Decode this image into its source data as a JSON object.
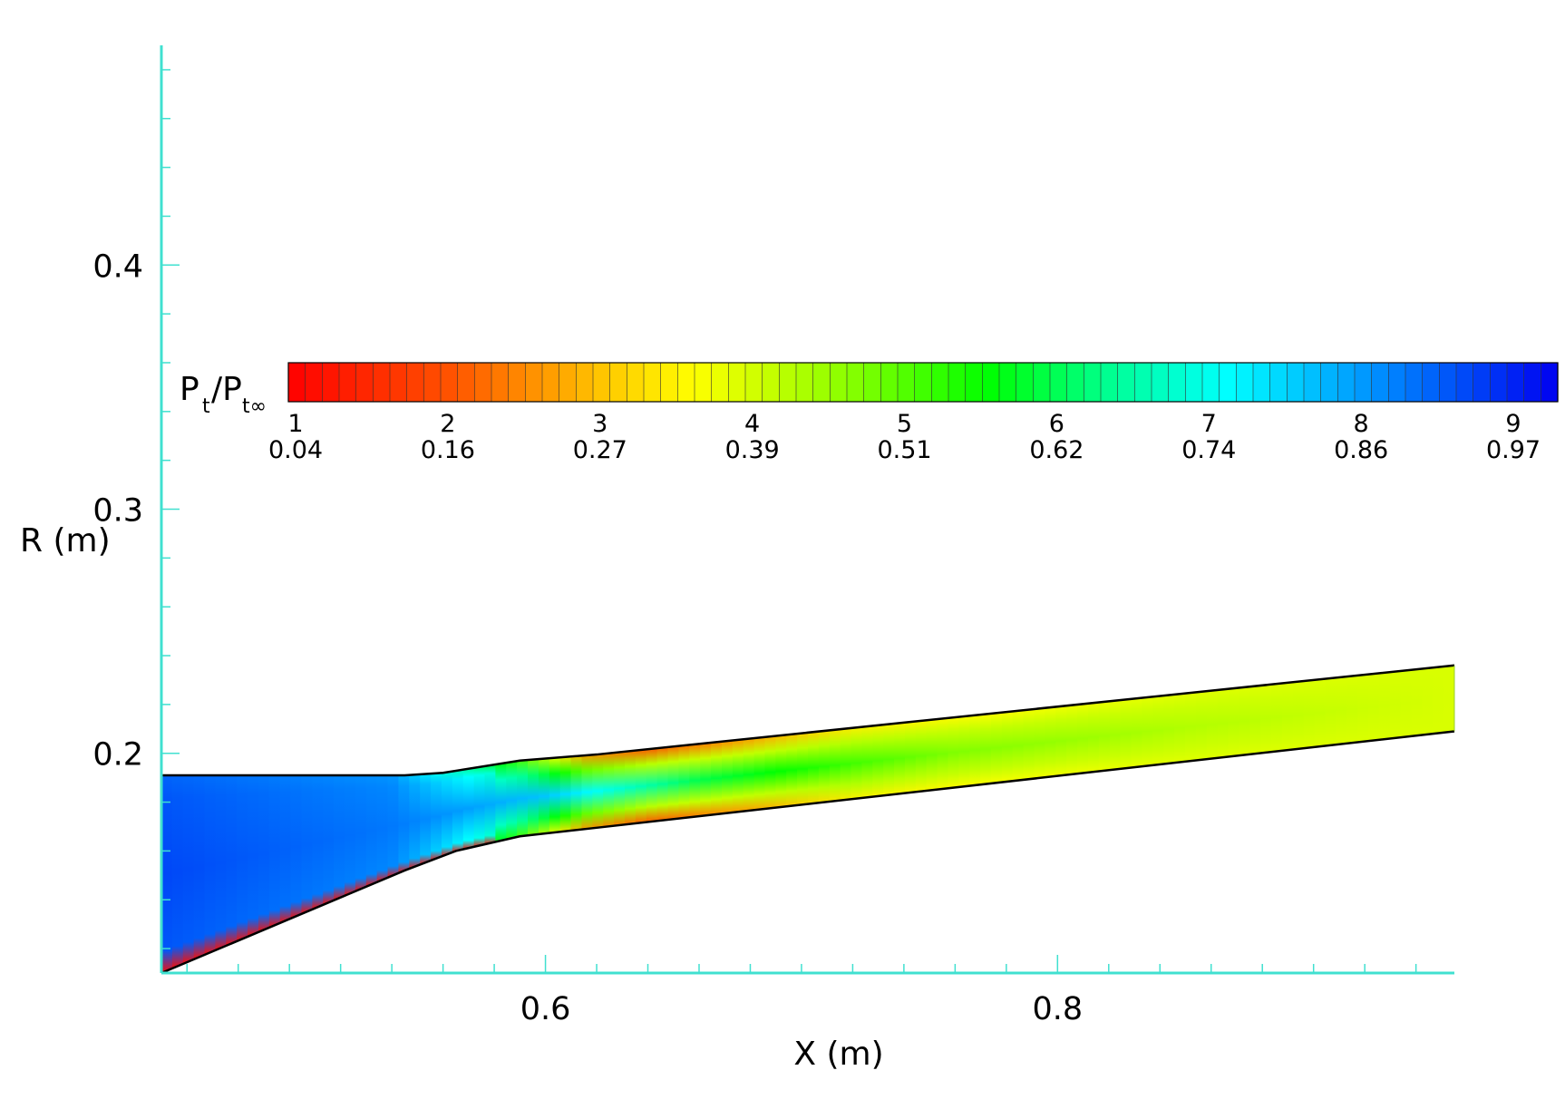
{
  "chart_data": {
    "type": "heatmap",
    "xlabel": "X (m)",
    "ylabel": "R (m)",
    "xlim": [
      0.45,
      0.955
    ],
    "ylim": [
      0.11,
      0.49
    ],
    "x_ticks": [
      0.6,
      0.8
    ],
    "y_ticks": [
      0.2,
      0.3,
      0.4
    ],
    "x_tick_labels": [
      "0.6",
      "0.8"
    ],
    "y_tick_labels": [
      "0.2",
      "0.3",
      "0.4"
    ],
    "grid": false,
    "axis_color": "#40e0d0",
    "colorbar": {
      "title_main": "P",
      "title_sub1": "t",
      "title_mid": "/P",
      "title_sub2": "t∞",
      "levels": [
        "1",
        "2",
        "3",
        "4",
        "5",
        "6",
        "7",
        "8",
        "9"
      ],
      "values": [
        "0.04",
        "0.16",
        "0.27",
        "0.39",
        "0.51",
        "0.62",
        "0.74",
        "0.86",
        "0.97"
      ],
      "vmin": 0.0,
      "vmax": 1.0,
      "palette": [
        "#ff0000",
        "#ff8000",
        "#ffff00",
        "#80ff00",
        "#00ff00",
        "#00ff80",
        "#00ffff",
        "#0080ff",
        "#0000ff"
      ],
      "placement": "top, horizontal"
    },
    "geometry": {
      "upper_wall": [
        [
          0.45,
          0.191
        ],
        [
          0.545,
          0.191
        ],
        [
          0.56,
          0.192
        ],
        [
          0.59,
          0.197
        ],
        [
          0.62,
          0.1995
        ],
        [
          0.955,
          0.236
        ]
      ],
      "lower_wall": [
        [
          0.45,
          0.11
        ],
        [
          0.545,
          0.152
        ],
        [
          0.565,
          0.16
        ],
        [
          0.59,
          0.166
        ],
        [
          0.62,
          0.1695
        ],
        [
          0.955,
          0.209
        ]
      ]
    },
    "field_description_values": {
      "inlet_core": 0.93,
      "ramp_region": 0.88,
      "throat_core": 0.7,
      "throat_walls": 0.12,
      "mid_duct_core": 0.45,
      "mid_duct_walls": 0.3,
      "exit": 0.36
    }
  }
}
